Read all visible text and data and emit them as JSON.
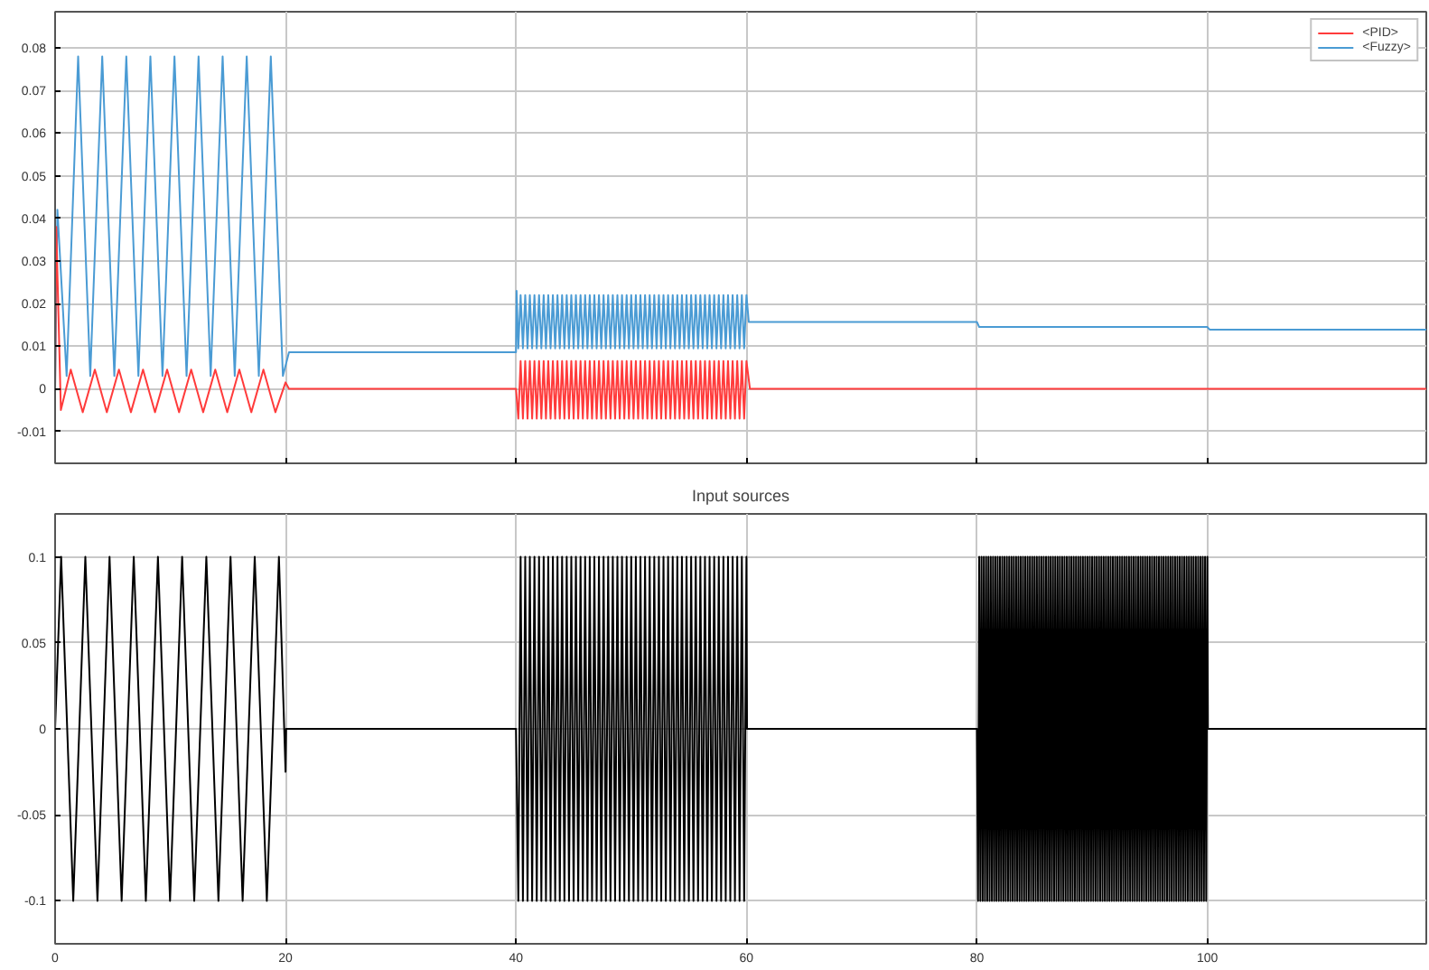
{
  "chart_data": [
    {
      "type": "line",
      "xlim": [
        0,
        119
      ],
      "xticks": [
        0,
        20,
        40,
        60,
        80,
        100
      ],
      "ylim": [
        -0.0175,
        0.0885
      ],
      "yticks": [
        -0.01,
        0,
        0.01,
        0.02,
        0.03,
        0.04,
        0.05,
        0.06,
        0.07,
        0.08
      ],
      "tick_labels": "y",
      "grid": true,
      "legend": "top right",
      "series": [
        {
          "name": "<PID>",
          "color": "#ff3b3b",
          "x": [
            0,
            0.1,
            0.5,
            1.36,
            2.4,
            3.45,
            4.49,
            5.54,
            6.58,
            7.63,
            8.67,
            9.72,
            10.76,
            11.81,
            12.85,
            13.9,
            14.94,
            15.99,
            17.03,
            18.08,
            19.12,
            20,
            20.3,
            40,
            40.2,
            40.4,
            40.6,
            40.8,
            41,
            41.2,
            41.4,
            41.6,
            41.8,
            42,
            42.2,
            42.4,
            42.6,
            42.8,
            43,
            43.2,
            43.4,
            43.6,
            43.8,
            44,
            44.2,
            44.4,
            44.6,
            44.8,
            45,
            45.2,
            45.4,
            45.6,
            45.8,
            46,
            46.2,
            46.4,
            46.6,
            46.8,
            47,
            47.2,
            47.4,
            47.6,
            47.8,
            48,
            48.2,
            48.4,
            48.6,
            48.8,
            49,
            49.2,
            49.4,
            49.6,
            49.8,
            50,
            50.2,
            50.4,
            50.6,
            50.8,
            51,
            51.2,
            51.4,
            51.6,
            51.8,
            52,
            52.2,
            52.4,
            52.6,
            52.8,
            53,
            53.2,
            53.4,
            53.6,
            53.8,
            54,
            54.2,
            54.4,
            54.6,
            54.8,
            55,
            55.2,
            55.4,
            55.6,
            55.8,
            56,
            56.2,
            56.4,
            56.6,
            56.8,
            57,
            57.2,
            57.4,
            57.6,
            57.8,
            58,
            58.2,
            58.4,
            58.6,
            58.8,
            59,
            59.2,
            59.4,
            59.6,
            59.8,
            60,
            60.3,
            119
          ],
          "values": [
            0,
            0.038,
            -0.005,
            0.0045,
            -0.0055,
            0.0045,
            -0.0055,
            0.0045,
            -0.0055,
            0.0045,
            -0.0055,
            0.0045,
            -0.0055,
            0.0045,
            -0.0055,
            0.0045,
            -0.0055,
            0.0045,
            -0.0055,
            0.0045,
            -0.0055,
            0.0015,
            0,
            0,
            -0.007,
            0.0065,
            -0.007,
            0.0065,
            -0.007,
            0.0065,
            -0.007,
            0.0065,
            -0.007,
            0.0065,
            -0.007,
            0.0065,
            -0.007,
            0.0065,
            -0.007,
            0.0065,
            -0.007,
            0.0065,
            -0.007,
            0.0065,
            -0.007,
            0.0065,
            -0.007,
            0.0065,
            -0.007,
            0.0065,
            -0.007,
            0.0065,
            -0.007,
            0.0065,
            -0.007,
            0.0065,
            -0.007,
            0.0065,
            -0.007,
            0.0065,
            -0.007,
            0.0065,
            -0.007,
            0.0065,
            -0.007,
            0.0065,
            -0.007,
            0.0065,
            -0.007,
            0.0065,
            -0.007,
            0.0065,
            -0.007,
            0.0065,
            -0.007,
            0.0065,
            -0.007,
            0.0065,
            -0.007,
            0.0065,
            -0.007,
            0.0065,
            -0.007,
            0.0065,
            -0.007,
            0.0065,
            -0.007,
            0.0065,
            -0.007,
            0.0065,
            -0.007,
            0.0065,
            -0.007,
            0.0065,
            -0.007,
            0.0065,
            -0.007,
            0.0065,
            -0.007,
            0.0065,
            -0.007,
            0.0065,
            -0.007,
            0.0065,
            -0.007,
            0.0065,
            -0.007,
            0.0065,
            -0.007,
            0.0065,
            -0.007,
            0.0065,
            -0.007,
            0.0065,
            -0.007,
            0.0065,
            -0.007,
            0.0065,
            -0.007,
            0.0065,
            -0.007,
            0.0065,
            -0.007,
            0.0065,
            0,
            0
          ]
        },
        {
          "name": "<Fuzzy>",
          "color": "#4a9bd4",
          "x": [
            0,
            0.2,
            1.0,
            2.0,
            3.05,
            4.09,
            5.14,
            6.18,
            7.23,
            8.27,
            9.32,
            10.36,
            11.41,
            12.45,
            13.5,
            14.54,
            15.59,
            16.63,
            17.68,
            18.72,
            19.77,
            20.3,
            40,
            40.05,
            40.2,
            40.4,
            40.6,
            40.8,
            41,
            41.2,
            41.4,
            41.6,
            41.8,
            42,
            42.2,
            42.4,
            42.6,
            42.8,
            43,
            43.2,
            43.4,
            43.6,
            43.8,
            44,
            44.2,
            44.4,
            44.6,
            44.8,
            45,
            45.2,
            45.4,
            45.6,
            45.8,
            46,
            46.2,
            46.4,
            46.6,
            46.8,
            47,
            47.2,
            47.4,
            47.6,
            47.8,
            48,
            48.2,
            48.4,
            48.6,
            48.8,
            49,
            49.2,
            49.4,
            49.6,
            49.8,
            50,
            50.2,
            50.4,
            50.6,
            50.8,
            51,
            51.2,
            51.4,
            51.6,
            51.8,
            52,
            52.2,
            52.4,
            52.6,
            52.8,
            53,
            53.2,
            53.4,
            53.6,
            53.8,
            54,
            54.2,
            54.4,
            54.6,
            54.8,
            55,
            55.2,
            55.4,
            55.6,
            55.8,
            56,
            56.2,
            56.4,
            56.6,
            56.8,
            57,
            57.2,
            57.4,
            57.6,
            57.8,
            58,
            58.2,
            58.4,
            58.6,
            58.8,
            59,
            59.2,
            59.4,
            59.6,
            59.8,
            60,
            60.2,
            80,
            80.2,
            100,
            100.2,
            119
          ],
          "values": [
            0,
            0.042,
            0.003,
            0.078,
            0.003,
            0.078,
            0.003,
            0.078,
            0.003,
            0.078,
            0.003,
            0.078,
            0.003,
            0.078,
            0.003,
            0.078,
            0.003,
            0.078,
            0.003,
            0.078,
            0.003,
            0.0086,
            0.0086,
            0.023,
            0.0095,
            0.022,
            0.0095,
            0.022,
            0.0095,
            0.022,
            0.0095,
            0.022,
            0.0095,
            0.022,
            0.0095,
            0.022,
            0.0095,
            0.022,
            0.0095,
            0.022,
            0.0095,
            0.022,
            0.0095,
            0.022,
            0.0095,
            0.022,
            0.0095,
            0.022,
            0.0095,
            0.022,
            0.0095,
            0.022,
            0.0095,
            0.022,
            0.0095,
            0.022,
            0.0095,
            0.022,
            0.0095,
            0.022,
            0.0095,
            0.022,
            0.0095,
            0.022,
            0.0095,
            0.022,
            0.0095,
            0.022,
            0.0095,
            0.022,
            0.0095,
            0.022,
            0.0095,
            0.022,
            0.0095,
            0.022,
            0.0095,
            0.022,
            0.0095,
            0.022,
            0.0095,
            0.022,
            0.0095,
            0.022,
            0.0095,
            0.022,
            0.0095,
            0.022,
            0.0095,
            0.022,
            0.0095,
            0.022,
            0.0095,
            0.022,
            0.0095,
            0.022,
            0.0095,
            0.022,
            0.0095,
            0.022,
            0.0095,
            0.022,
            0.0095,
            0.022,
            0.0095,
            0.022,
            0.0095,
            0.022,
            0.0095,
            0.022,
            0.0095,
            0.022,
            0.0095,
            0.022,
            0.0095,
            0.022,
            0.0095,
            0.022,
            0.0095,
            0.022,
            0.0095,
            0.022,
            0.0095,
            0.022,
            0.0157,
            0.0157,
            0.0145,
            0.0145,
            0.0139,
            0.0139
          ]
        }
      ]
    },
    {
      "type": "line",
      "title": "Input sources",
      "xlim": [
        0,
        119
      ],
      "xticks": [
        0,
        20,
        40,
        60,
        80,
        100
      ],
      "ylim": [
        -0.125,
        0.125
      ],
      "yticks": [
        -0.1,
        -0.05,
        0,
        0.05,
        0.1
      ],
      "grid": true,
      "series": [
        {
          "color": "#000000",
          "x": [
            0,
            0.525,
            1.575,
            2.625,
            3.675,
            4.725,
            5.775,
            6.825,
            7.875,
            8.925,
            9.975,
            11.025,
            12.075,
            13.125,
            14.175,
            15.225,
            16.275,
            17.325,
            18.375,
            19.425,
            20,
            20.05,
            40,
            40.2,
            40.4,
            40.6,
            40.8,
            41,
            41.2,
            41.4,
            41.6,
            41.8,
            42,
            42.2,
            42.4,
            42.6,
            42.8,
            43,
            43.2,
            43.4,
            43.6,
            43.8,
            44,
            44.2,
            44.4,
            44.6,
            44.8,
            45,
            45.2,
            45.4,
            45.6,
            45.8,
            46,
            46.2,
            46.4,
            46.6,
            46.8,
            47,
            47.2,
            47.4,
            47.6,
            47.8,
            48,
            48.2,
            48.4,
            48.6,
            48.8,
            49,
            49.2,
            49.4,
            49.6,
            49.8,
            50,
            50.2,
            50.4,
            50.6,
            50.8,
            51,
            51.2,
            51.4,
            51.6,
            51.8,
            52,
            52.2,
            52.4,
            52.6,
            52.8,
            53,
            53.2,
            53.4,
            53.6,
            53.8,
            54,
            54.2,
            54.4,
            54.6,
            54.8,
            55,
            55.2,
            55.4,
            55.6,
            55.8,
            56,
            56.2,
            56.4,
            56.6,
            56.8,
            57,
            57.2,
            57.4,
            57.6,
            57.8,
            58,
            58.2,
            58.4,
            58.6,
            58.8,
            59,
            59.2,
            59.4,
            59.6,
            59.8,
            60,
            60.05,
            80,
            80.1,
            80.2,
            80.3,
            80.4,
            80.5,
            80.6,
            80.7,
            80.8,
            80.9,
            81,
            81.1,
            81.2,
            81.3,
            81.4,
            81.5,
            81.6,
            81.7,
            81.8,
            81.9,
            82,
            82.1,
            82.2,
            82.3,
            82.4,
            82.5,
            82.6,
            82.7,
            82.8,
            82.9,
            83,
            83.1,
            83.2,
            83.3,
            83.4,
            83.5,
            83.6,
            83.7,
            83.8,
            83.9,
            84,
            84.1,
            84.2,
            84.3,
            84.4,
            84.5,
            84.6,
            84.7,
            84.8,
            84.9,
            85,
            85.1,
            85.2,
            85.3,
            85.4,
            85.5,
            85.6,
            85.7,
            85.8,
            85.9,
            86,
            86.1,
            86.2,
            86.3,
            86.4,
            86.5,
            86.6,
            86.7,
            86.8,
            86.9,
            87,
            87.1,
            87.2,
            87.3,
            87.4,
            87.5,
            87.6,
            87.7,
            87.8,
            87.9,
            88,
            88.1,
            88.2,
            88.3,
            88.4,
            88.5,
            88.6,
            88.7,
            88.8,
            88.9,
            89,
            89.1,
            89.2,
            89.3,
            89.4,
            89.5,
            89.6,
            89.7,
            89.8,
            89.9,
            90,
            90.1,
            90.2,
            90.3,
            90.4,
            90.5,
            90.6,
            90.7,
            90.8,
            90.9,
            91,
            91.1,
            91.2,
            91.3,
            91.4,
            91.5,
            91.6,
            91.7,
            91.8,
            91.9,
            92,
            92.1,
            92.2,
            92.3,
            92.4,
            92.5,
            92.6,
            92.7,
            92.8,
            92.9,
            93,
            93.1,
            93.2,
            93.3,
            93.4,
            93.5,
            93.6,
            93.7,
            93.8,
            93.9,
            94,
            94.1,
            94.2,
            94.3,
            94.4,
            94.5,
            94.6,
            94.7,
            94.8,
            94.9,
            95,
            95.1,
            95.2,
            95.3,
            95.4,
            95.5,
            95.6,
            95.7,
            95.8,
            95.9,
            96,
            96.1,
            96.2,
            96.3,
            96.4,
            96.5,
            96.6,
            96.7,
            96.8,
            96.9,
            97,
            97.1,
            97.2,
            97.3,
            97.4,
            97.5,
            97.6,
            97.7,
            97.8,
            97.9,
            98,
            98.1,
            98.2,
            98.3,
            98.4,
            98.5,
            98.6,
            98.7,
            98.8,
            98.9,
            99,
            99.1,
            99.2,
            99.3,
            99.4,
            99.5,
            99.6,
            99.7,
            99.8,
            99.9,
            100,
            100.05,
            119
          ],
          "values": [
            0,
            0.1,
            -0.1,
            0.1,
            -0.1,
            0.1,
            -0.1,
            0.1,
            -0.1,
            0.1,
            -0.1,
            0.1,
            -0.1,
            0.1,
            -0.1,
            0.1,
            -0.1,
            0.1,
            -0.1,
            0.1,
            -0.025,
            0,
            0,
            -0.1,
            0.1,
            -0.1,
            0.1,
            -0.1,
            0.1,
            -0.1,
            0.1,
            -0.1,
            0.1,
            -0.1,
            0.1,
            -0.1,
            0.1,
            -0.1,
            0.1,
            -0.1,
            0.1,
            -0.1,
            0.1,
            -0.1,
            0.1,
            -0.1,
            0.1,
            -0.1,
            0.1,
            -0.1,
            0.1,
            -0.1,
            0.1,
            -0.1,
            0.1,
            -0.1,
            0.1,
            -0.1,
            0.1,
            -0.1,
            0.1,
            -0.1,
            0.1,
            -0.1,
            0.1,
            -0.1,
            0.1,
            -0.1,
            0.1,
            -0.1,
            0.1,
            -0.1,
            0.1,
            -0.1,
            0.1,
            -0.1,
            0.1,
            -0.1,
            0.1,
            -0.1,
            0.1,
            -0.1,
            0.1,
            -0.1,
            0.1,
            -0.1,
            0.1,
            -0.1,
            0.1,
            -0.1,
            0.1,
            -0.1,
            0.1,
            -0.1,
            0.1,
            -0.1,
            0.1,
            -0.1,
            0.1,
            -0.1,
            0.1,
            -0.1,
            0.1,
            -0.1,
            0.1,
            -0.1,
            0.1,
            -0.1,
            0.1,
            -0.1,
            0.1,
            -0.1,
            0.1,
            -0.1,
            0.1,
            -0.1,
            0.1,
            -0.1,
            0.1,
            -0.1,
            0.1,
            -0.1,
            0.1,
            0,
            0,
            -0.1,
            0.1,
            -0.1,
            0.1,
            -0.1,
            0.1,
            -0.1,
            0.1,
            -0.1,
            0.1,
            -0.1,
            0.1,
            -0.1,
            0.1,
            -0.1,
            0.1,
            -0.1,
            0.1,
            -0.1,
            0.1,
            -0.1,
            0.1,
            -0.1,
            0.1,
            -0.1,
            0.1,
            -0.1,
            0.1,
            -0.1,
            0.1,
            -0.1,
            0.1,
            -0.1,
            0.1,
            -0.1,
            0.1,
            -0.1,
            0.1,
            -0.1,
            0.1,
            -0.1,
            0.1,
            -0.1,
            0.1,
            -0.1,
            0.1,
            -0.1,
            0.1,
            -0.1,
            0.1,
            -0.1,
            0.1,
            -0.1,
            0.1,
            -0.1,
            0.1,
            -0.1,
            0.1,
            -0.1,
            0.1,
            -0.1,
            0.1,
            -0.1,
            0.1,
            -0.1,
            0.1,
            -0.1,
            0.1,
            -0.1,
            0.1,
            -0.1,
            0.1,
            -0.1,
            0.1,
            -0.1,
            0.1,
            -0.1,
            0.1,
            -0.1,
            0.1,
            -0.1,
            0.1,
            -0.1,
            0.1,
            -0.1,
            0.1,
            -0.1,
            0.1,
            -0.1,
            0.1,
            -0.1,
            0.1,
            -0.1,
            0.1,
            -0.1,
            0.1,
            -0.1,
            0.1,
            -0.1,
            0.1,
            -0.1,
            0.1,
            -0.1,
            0.1,
            -0.1,
            0.1,
            -0.1,
            0.1,
            -0.1,
            0.1,
            -0.1,
            0.1,
            -0.1,
            0.1,
            -0.1,
            0.1,
            -0.1,
            0.1,
            -0.1,
            0.1,
            -0.1,
            0.1,
            -0.1,
            0.1,
            -0.1,
            0.1,
            -0.1,
            0.1,
            -0.1,
            0.1,
            -0.1,
            0.1,
            -0.1,
            0.1,
            -0.1,
            0.1,
            -0.1,
            0.1,
            -0.1,
            0.1,
            -0.1,
            0.1,
            -0.1,
            0.1,
            -0.1,
            0.1,
            -0.1,
            0.1,
            -0.1,
            0.1,
            -0.1,
            0.1,
            -0.1,
            0.1,
            -0.1,
            0.1,
            -0.1,
            0.1,
            -0.1,
            0.1,
            -0.1,
            0.1,
            -0.1,
            0.1,
            -0.1,
            0.1,
            -0.1,
            0.1,
            -0.1,
            0.1,
            -0.1,
            0.1,
            -0.1,
            0.1,
            -0.1,
            0.1,
            -0.1,
            0.1,
            -0.1,
            0.1,
            -0.1,
            0.1,
            -0.1,
            0.1,
            -0.1,
            0.1,
            -0.1,
            0.1,
            -0.1,
            0.1,
            -0.1,
            0.1,
            -0.1,
            0.1,
            -0.1,
            0.1,
            -0.1,
            0.1,
            -0.1,
            0.1,
            0,
            0
          ]
        }
      ]
    }
  ]
}
